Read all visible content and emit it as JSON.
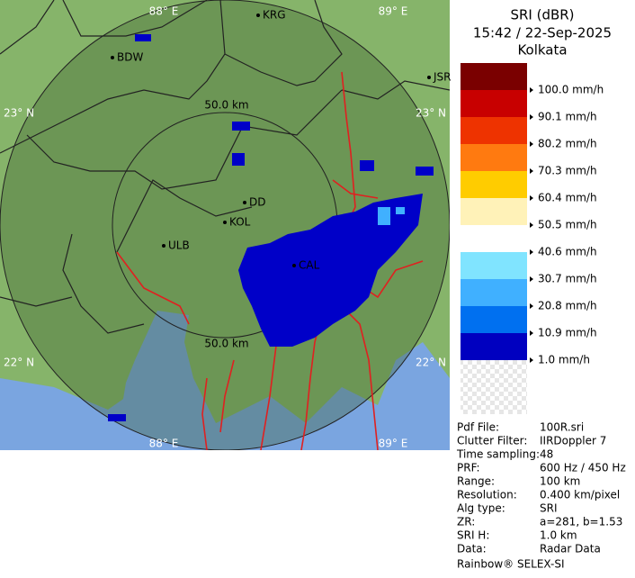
{
  "header": {
    "product": "SRI (dBR)",
    "time": "15:42 / 22-Sep-2025",
    "site": "Kolkata"
  },
  "legend": {
    "colors": [
      "#7a0000",
      "#c80000",
      "#ee3300",
      "#ff7a10",
      "#ffcc00",
      "#fff2b8",
      "#ffffff",
      "#80e4ff",
      "#40b0ff",
      "#0070f0",
      "#0000c0"
    ],
    "labels": [
      "100.0 mm/h",
      "90.1 mm/h",
      "80.2 mm/h",
      "70.3 mm/h",
      "60.4 mm/h",
      "50.5 mm/h",
      "40.6 mm/h",
      "30.7 mm/h",
      "20.8 mm/h",
      "10.9 mm/h",
      "1.0 mm/h"
    ]
  },
  "map": {
    "lon_labels": [
      "88° E",
      "89° E",
      "88° E",
      "89° E"
    ],
    "lat_labels": [
      "23° N",
      "23° N",
      "22° N",
      "22° N"
    ],
    "range_labels": [
      "50.0 km",
      "50.0 km"
    ],
    "places": [
      "KRG",
      "BDW",
      "JSR",
      "DD",
      "KOL",
      "ULB",
      "CAL"
    ]
  },
  "info": {
    "rows": [
      [
        "Pdf File:",
        "100R.sri"
      ],
      [
        "Clutter Filter:",
        "IIRDoppler 7"
      ],
      [
        "Time sampling:",
        "48"
      ],
      [
        "PRF:",
        "600 Hz / 450 Hz"
      ],
      [
        "Range:",
        "100 km"
      ],
      [
        "Resolution:",
        "0.400 km/pixel"
      ],
      [
        "Alg type:",
        "SRI"
      ],
      [
        "ZR:",
        "a=281, b=1.53"
      ],
      [
        "SRI H:",
        "1.0 km"
      ],
      [
        "Data:",
        "Radar Data"
      ]
    ]
  },
  "footer": "Rainbow® SELEX-SI"
}
